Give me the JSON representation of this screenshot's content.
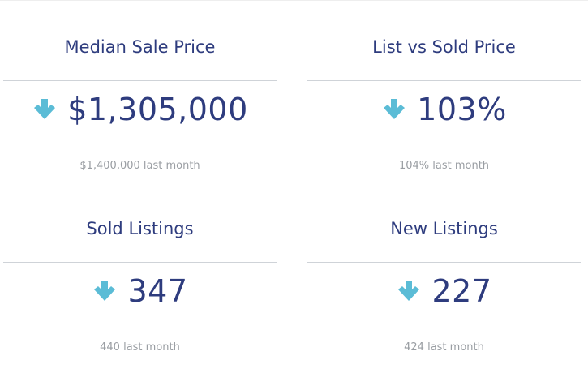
{
  "cards": [
    {
      "title": "Median Sale Price",
      "value": "$1,305,000",
      "trend_icon": "arrow-down-icon",
      "comparison": "$1,400,000 last month"
    },
    {
      "title": "List vs Sold Price",
      "value": "103%",
      "trend_icon": "arrow-down-icon",
      "comparison": "104% last month"
    },
    {
      "title": "Sold Listings",
      "value": "347",
      "trend_icon": "arrow-down-icon",
      "comparison": "440 last month"
    },
    {
      "title": "New Listings",
      "value": "227",
      "trend_icon": "arrow-down-icon",
      "comparison": "424 last month"
    }
  ],
  "colors": {
    "title": "#2e3c7e",
    "value": "#2e3c7e",
    "arrow": "#5bbcd6",
    "comparison": "#9a9ea3",
    "divider": "#cfd3d8"
  }
}
